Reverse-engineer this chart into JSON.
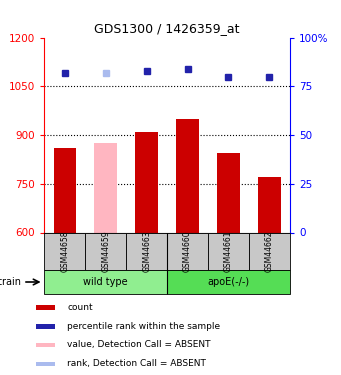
{
  "title": "GDS1300 / 1426359_at",
  "samples": [
    "GSM44658",
    "GSM44659",
    "GSM44663",
    "GSM44660",
    "GSM44661",
    "GSM44662"
  ],
  "count_values": [
    860,
    875,
    910,
    950,
    845,
    770
  ],
  "rank_values": [
    82,
    82,
    83,
    84,
    80,
    80
  ],
  "absent_mask": [
    false,
    true,
    false,
    false,
    false,
    false
  ],
  "ylim_left": [
    600,
    1200
  ],
  "ylim_right": [
    0,
    100
  ],
  "yticks_left": [
    600,
    750,
    900,
    1050,
    1200
  ],
  "yticks_right": [
    0,
    25,
    50,
    75,
    100
  ],
  "groups": [
    {
      "label": "wild type",
      "start": 0,
      "end": 3,
      "color": "#90EE90"
    },
    {
      "label": "apoE(-/-)",
      "start": 3,
      "end": 6,
      "color": "#55DD55"
    }
  ],
  "bar_color_normal": "#CC0000",
  "bar_color_absent": "#FFB6C1",
  "rank_color_normal": "#2222AA",
  "rank_color_absent": "#AABBEE",
  "bar_width": 0.55,
  "sample_box_color": "#C8C8C8",
  "strain_label": "strain",
  "legend_items": [
    {
      "color": "#CC0000",
      "label": "count"
    },
    {
      "color": "#2222AA",
      "label": "percentile rank within the sample"
    },
    {
      "color": "#FFB6C1",
      "label": "value, Detection Call = ABSENT"
    },
    {
      "color": "#AABBEE",
      "label": "rank, Detection Call = ABSENT"
    }
  ]
}
